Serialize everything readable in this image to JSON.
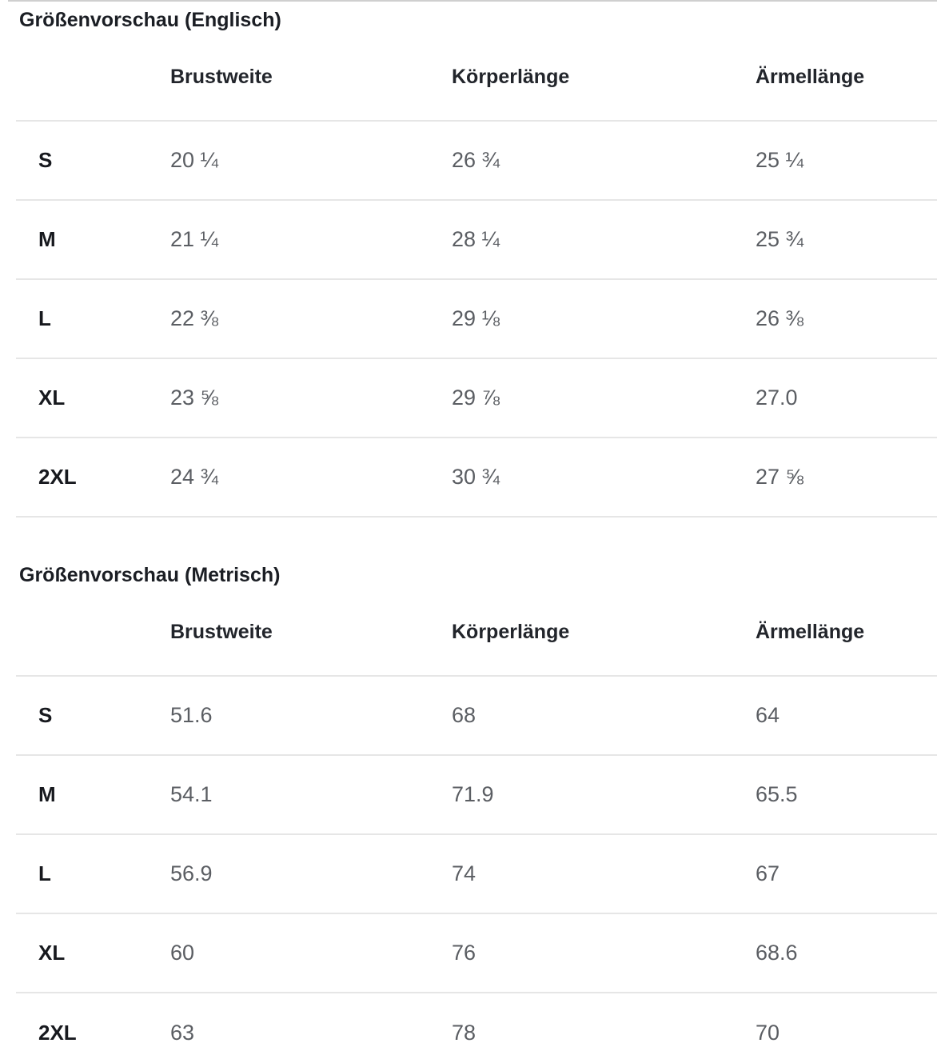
{
  "colors": {
    "heading_text": "#1b1e24",
    "value_text": "#5b5e63",
    "divider": "#e6e6e6",
    "top_line": "#cfcfcf",
    "background": "#ffffff"
  },
  "tables": [
    {
      "title": "Größenvorschau (Englisch)",
      "columns": [
        "Brustweite",
        "Körperlänge",
        "Ärmellänge"
      ],
      "rows": [
        {
          "size": "S",
          "values": [
            "20 ¼",
            "26 ¾",
            "25 ¼"
          ]
        },
        {
          "size": "M",
          "values": [
            "21 ¼",
            "28 ¼",
            "25 ¾"
          ]
        },
        {
          "size": "L",
          "values": [
            "22 ⅜",
            "29 ⅛",
            "26 ⅜"
          ]
        },
        {
          "size": "XL",
          "values": [
            "23 ⅝",
            "29 ⅞",
            "27.0"
          ]
        },
        {
          "size": "2XL",
          "values": [
            "24 ¾",
            "30 ¾",
            "27 ⅝"
          ]
        }
      ]
    },
    {
      "title": "Größenvorschau (Metrisch)",
      "columns": [
        "Brustweite",
        "Körperlänge",
        "Ärmellänge"
      ],
      "rows": [
        {
          "size": "S",
          "values": [
            "51.6",
            "68",
            "64"
          ]
        },
        {
          "size": "M",
          "values": [
            "54.1",
            "71.9",
            "65.5"
          ]
        },
        {
          "size": "L",
          "values": [
            "56.9",
            "74",
            "67"
          ]
        },
        {
          "size": "XL",
          "values": [
            "60",
            "76",
            "68.6"
          ]
        },
        {
          "size": "2XL",
          "values": [
            "63",
            "78",
            "70"
          ]
        }
      ]
    }
  ]
}
